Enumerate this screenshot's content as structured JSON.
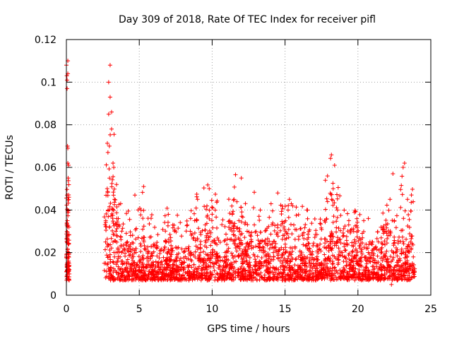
{
  "chart_data": {
    "type": "scatter",
    "title": "Day 309 of 2018, Rate Of TEC Index for receiver pifl",
    "xlabel": "GPS time / hours",
    "ylabel": "ROTI / TECUs",
    "xlim": [
      0,
      25
    ],
    "ylim": [
      0,
      0.12
    ],
    "xticks": [
      0,
      5,
      10,
      15,
      20,
      25
    ],
    "yticks": [
      0,
      0.02,
      0.04,
      0.06,
      0.08,
      0.1,
      0.12
    ],
    "xtick_labels": [
      "0",
      "5",
      "10",
      "15",
      "20",
      "25"
    ],
    "ytick_labels": [
      "0",
      "0.02",
      "0.04",
      "0.06",
      "0.08",
      "0.1",
      "0.12"
    ],
    "grid": true,
    "marker": "+",
    "color": "#ff0000",
    "series": [
      {
        "name": "ROTI",
        "x": [
          0.0,
          0.03,
          0.05,
          0.08,
          0.1,
          0.12,
          0.15,
          0.18,
          0.2,
          0.0,
          0.05,
          0.1,
          0.15,
          0.2,
          0.05,
          0.1,
          0.15,
          0.1,
          0.2,
          0.05,
          2.6,
          2.7,
          2.8,
          2.9,
          3.0,
          3.1,
          3.2,
          3.3,
          3.4,
          2.85,
          2.9,
          2.95,
          3.0,
          3.1,
          3.25,
          3.4,
          2.9,
          3.0,
          3.2,
          3.3,
          3.5,
          3.8,
          4.1,
          4.4,
          4.7,
          5.0,
          5.3,
          5.6,
          5.9,
          6.2,
          4.6,
          5.2,
          6.8,
          7.0,
          7.3,
          7.6,
          7.9,
          8.2,
          8.5,
          8.8,
          9.0,
          9.2,
          9.5,
          9.8,
          10.0,
          10.3,
          10.6,
          10.9,
          11.2,
          11.5,
          11.8,
          12.0,
          12.1,
          12.4,
          12.7,
          13.0,
          13.3,
          13.6,
          13.9,
          14.2,
          14.5,
          14.8,
          15.0,
          15.3,
          15.6,
          15.9,
          16.2,
          16.5,
          16.8,
          17.1,
          17.4,
          17.7,
          18.0,
          18.2,
          18.4,
          18.6,
          18.9,
          19.2,
          19.5,
          19.8,
          20.1,
          20.4,
          20.7,
          21.0,
          21.3,
          21.6,
          21.9,
          22.2,
          22.4,
          22.6,
          22.9,
          23.0,
          23.2,
          23.4,
          23.6,
          23.8,
          22.3,
          23.1,
          22.5,
          18.3
        ],
        "y": [
          0.108,
          0.103,
          0.097,
          0.07,
          0.062,
          0.055,
          0.02,
          0.015,
          0.012,
          0.018,
          0.047,
          0.11,
          0.016,
          0.014,
          0.013,
          0.104,
          0.061,
          0.069,
          0.01,
          0.101,
          0.015,
          0.035,
          0.05,
          0.085,
          0.108,
          0.078,
          0.062,
          0.045,
          0.03,
          0.067,
          0.1,
          0.07,
          0.093,
          0.086,
          0.06,
          0.02,
          0.008,
          0.012,
          0.025,
          0.018,
          0.016,
          0.02,
          0.013,
          0.028,
          0.047,
          0.012,
          0.051,
          0.018,
          0.01,
          0.022,
          0.015,
          0.008,
          0.025,
          0.014,
          0.033,
          0.018,
          0.009,
          0.022,
          0.03,
          0.035,
          0.045,
          0.02,
          0.012,
          0.05,
          0.038,
          0.015,
          0.01,
          0.02,
          0.035,
          0.045,
          0.018,
          0.055,
          0.01,
          0.03,
          0.022,
          0.014,
          0.04,
          0.025,
          0.008,
          0.02,
          0.048,
          0.015,
          0.02,
          0.045,
          0.033,
          0.012,
          0.028,
          0.04,
          0.015,
          0.01,
          0.024,
          0.035,
          0.018,
          0.045,
          0.061,
          0.04,
          0.02,
          0.014,
          0.03,
          0.025,
          0.016,
          0.035,
          0.008,
          0.025,
          0.015,
          0.012,
          0.03,
          0.045,
          0.057,
          0.02,
          0.008,
          0.014,
          0.062,
          0.045,
          0.025,
          0.018,
          0.005,
          0.06,
          0.035,
          0.05
        ]
      }
    ]
  }
}
